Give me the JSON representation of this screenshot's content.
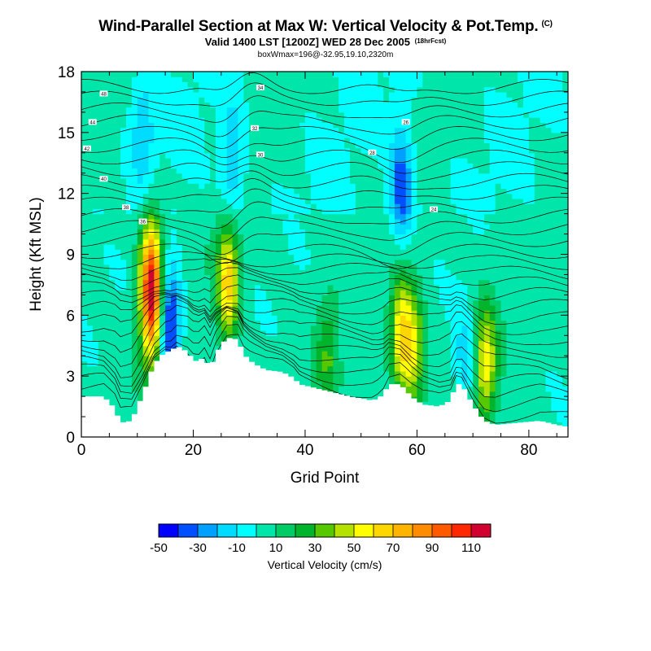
{
  "chart_data": {
    "type": "heatmap",
    "title": "Wind-Parallel Section at Max W: Vertical Velocity & Pot.Temp.",
    "title_mark": "(C)",
    "subtitle": "Valid 1400 LST [1200Z] WED 28 Dec 2005",
    "subtitle_note": "(18hrFcst)",
    "info": "boxWmax=196@-32.95,19.10,2320m",
    "xlabel": "Grid Point",
    "ylabel": "Height (Kft MSL)",
    "xlim": [
      0,
      87
    ],
    "ylim": [
      0,
      18
    ],
    "xticks": [
      0,
      20,
      40,
      60,
      80
    ],
    "yticks": [
      0,
      3,
      6,
      9,
      12,
      15,
      18
    ],
    "colorbar": {
      "label": "Vertical Velocity (cm/s)",
      "tick_labels": [
        "-50",
        "-30",
        "-10",
        "10",
        "30",
        "50",
        "70",
        "90",
        "110"
      ],
      "bounds": [
        -50,
        -40,
        -30,
        -20,
        -10,
        0,
        10,
        20,
        30,
        40,
        50,
        60,
        70,
        80,
        90,
        100,
        110,
        120
      ],
      "colors": [
        "#0000ff",
        "#0050ff",
        "#00a0ff",
        "#00dcff",
        "#00ffff",
        "#00e6aa",
        "#00cc66",
        "#00b42d",
        "#55c800",
        "#b4e100",
        "#ffff00",
        "#ffd700",
        "#ffb400",
        "#ff8c00",
        "#ff5a00",
        "#ff2800",
        "#d20030"
      ]
    },
    "terrain": [
      [
        0,
        2
      ],
      [
        4,
        2
      ],
      [
        5,
        1.7
      ],
      [
        6,
        1.4
      ],
      [
        7,
        0.7
      ],
      [
        9,
        0.8
      ],
      [
        11,
        2.1
      ],
      [
        13,
        3.6
      ],
      [
        15,
        4.2
      ],
      [
        16,
        4.2
      ],
      [
        17,
        4.5
      ],
      [
        19,
        4.2
      ],
      [
        20,
        3.8
      ],
      [
        21,
        3.7
      ],
      [
        22,
        4.0
      ],
      [
        23,
        3.3
      ],
      [
        24,
        4.1
      ],
      [
        26,
        4.9
      ],
      [
        28,
        4.8
      ],
      [
        29,
        4.1
      ],
      [
        30,
        3.8
      ],
      [
        31,
        3.6
      ],
      [
        33,
        3.3
      ],
      [
        36,
        3.2
      ],
      [
        38,
        2.9
      ],
      [
        39,
        2.6
      ],
      [
        42,
        2.4
      ],
      [
        45,
        2.2
      ],
      [
        48,
        2.0
      ],
      [
        50,
        1.9
      ],
      [
        52,
        1.8
      ],
      [
        53,
        1.9
      ],
      [
        54,
        2.1
      ],
      [
        55,
        2.6
      ],
      [
        57,
        2.6
      ],
      [
        58,
        2.3
      ],
      [
        59,
        2.0
      ],
      [
        60,
        1.8
      ],
      [
        61,
        1.6
      ],
      [
        64,
        1.5
      ],
      [
        66,
        1.8
      ],
      [
        67,
        2.6
      ],
      [
        68,
        2.6
      ],
      [
        69,
        2.1
      ],
      [
        70,
        1.6
      ],
      [
        71,
        1.2
      ],
      [
        72,
        0.8
      ],
      [
        74,
        0.6
      ],
      [
        78,
        0.7
      ],
      [
        82,
        0.8
      ],
      [
        85,
        0.6
      ],
      [
        87,
        0.5
      ]
    ],
    "theta_labels": [
      "48",
      "44",
      "42",
      "40",
      "38",
      "36",
      "34",
      "32",
      "30",
      "28",
      "26",
      "24"
    ],
    "features": [
      {
        "x": 12.5,
        "y": 7.2,
        "w": 115
      },
      {
        "x": 15.8,
        "y": 5.6,
        "w": -55
      },
      {
        "x": 26.2,
        "y": 7.6,
        "w": 62
      },
      {
        "x": 57.2,
        "y": 5.1,
        "w": 58
      },
      {
        "x": 59.6,
        "y": 4.2,
        "w": 42
      },
      {
        "x": 72.3,
        "y": 3.7,
        "w": 50
      },
      {
        "x": 57.2,
        "y": 12.3,
        "w": -42
      },
      {
        "x": 27.0,
        "y": 13.5,
        "w": -25
      },
      {
        "x": 11.0,
        "y": 15.0,
        "w": -22
      },
      {
        "x": 68.5,
        "y": 3.6,
        "w": -20
      },
      {
        "x": 44.0,
        "y": 4.0,
        "w": 24
      }
    ]
  }
}
